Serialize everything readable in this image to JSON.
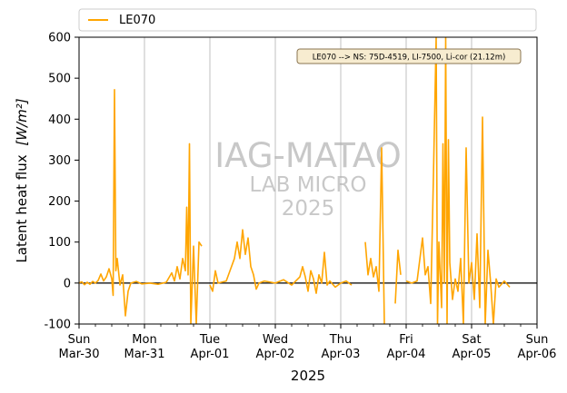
{
  "chart_data": {
    "type": "line",
    "xlabel": "2025",
    "ylabel_main": "Latent heat flux",
    "ylabel_unit": "[W/m²]",
    "ylim": [
      -100,
      600
    ],
    "yticks": [
      -100,
      0,
      100,
      200,
      300,
      400,
      500,
      600
    ],
    "xlim": [
      "2025-03-30",
      "2025-04-06"
    ],
    "xticks": [
      {
        "date": "2025-03-30",
        "day": "Sun",
        "date_label": "Mar-30"
      },
      {
        "date": "2025-03-31",
        "day": "Mon",
        "date_label": "Mar-31"
      },
      {
        "date": "2025-04-01",
        "day": "Tue",
        "date_label": "Apr-01"
      },
      {
        "date": "2025-04-02",
        "day": "Wed",
        "date_label": "Apr-02"
      },
      {
        "date": "2025-04-03",
        "day": "Thu",
        "date_label": "Apr-03"
      },
      {
        "date": "2025-04-04",
        "day": "Fri",
        "date_label": "Apr-04"
      },
      {
        "date": "2025-04-05",
        "day": "Sat",
        "date_label": "Apr-05"
      },
      {
        "date": "2025-04-06",
        "day": "Sun",
        "date_label": "Apr-06"
      }
    ],
    "grid": "vertical",
    "zero_line": true,
    "legend_placement": "top, above plot",
    "annotation": "LE070 --> NS: 75D-4519, LI-7500, Li-cor (21.12m)",
    "watermark": [
      "IAG-MATAO",
      "LAB MICRO",
      "2025"
    ],
    "series": [
      {
        "name": "LE070",
        "color": "#ffa500",
        "points": [
          [
            "2025-03-30 00:00",
            0
          ],
          [
            "2025-03-30 01:00",
            3
          ],
          [
            "2025-03-30 02:00",
            -4
          ],
          [
            "2025-03-30 03:00",
            2
          ],
          [
            "2025-03-30 04:00",
            -3
          ],
          [
            "2025-03-30 05:00",
            4
          ],
          [
            "2025-03-30 06:00",
            0
          ],
          [
            "2025-03-30 07:00",
            6
          ],
          [
            "2025-03-30 08:00",
            22
          ],
          [
            "2025-03-30 09:00",
            5
          ],
          [
            "2025-03-30 10:00",
            15
          ],
          [
            "2025-03-30 11:00",
            35
          ],
          [
            "2025-03-30 12:00",
            10
          ],
          [
            "2025-03-30 12:30",
            -30
          ],
          [
            "2025-03-30 13:00",
            472
          ],
          [
            "2025-03-30 13:30",
            30
          ],
          [
            "2025-03-30 14:00",
            60
          ],
          [
            "2025-03-30 15:00",
            -5
          ],
          [
            "2025-03-30 16:00",
            20
          ],
          [
            "2025-03-30 17:00",
            -80
          ],
          [
            "2025-03-30 18:00",
            -20
          ],
          [
            "2025-03-30 19:00",
            0
          ],
          [
            "2025-03-30 21:00",
            4
          ],
          [
            "2025-03-30 23:00",
            -2
          ],
          [
            "2025-03-31 02:00",
            0
          ],
          [
            "2025-03-31 05:00",
            -3
          ],
          [
            "2025-03-31 08:00",
            2
          ],
          [
            "2025-03-31 10:00",
            25
          ],
          [
            "2025-03-31 11:00",
            5
          ],
          [
            "2025-03-31 12:00",
            40
          ],
          [
            "2025-03-31 13:00",
            10
          ],
          [
            "2025-03-31 14:00",
            60
          ],
          [
            "2025-03-31 15:00",
            30
          ],
          [
            "2025-03-31 15:30",
            185
          ],
          [
            "2025-03-31 16:00",
            20
          ],
          [
            "2025-03-31 16:30",
            340
          ],
          [
            "2025-03-31 17:00",
            -100
          ],
          [
            "2025-03-31 18:00",
            90
          ],
          [
            "2025-03-31 19:00",
            -100
          ],
          [
            "2025-03-31 20:00",
            100
          ],
          [
            "2025-03-31 21:00",
            90
          ],
          null,
          [
            "2025-04-01 00:00",
            -5
          ],
          [
            "2025-04-01 01:00",
            -20
          ],
          [
            "2025-04-01 02:00",
            30
          ],
          [
            "2025-04-01 03:00",
            0
          ],
          [
            "2025-04-01 06:00",
            5
          ],
          [
            "2025-04-01 09:00",
            60
          ],
          [
            "2025-04-01 10:00",
            100
          ],
          [
            "2025-04-01 11:00",
            60
          ],
          [
            "2025-04-01 12:00",
            130
          ],
          [
            "2025-04-01 13:00",
            70
          ],
          [
            "2025-04-01 14:00",
            110
          ],
          [
            "2025-04-01 15:00",
            40
          ],
          [
            "2025-04-01 16:00",
            20
          ],
          [
            "2025-04-01 17:00",
            -15
          ],
          [
            "2025-04-01 18:00",
            0
          ],
          [
            "2025-04-01 20:00",
            5
          ],
          [
            "2025-04-02 00:00",
            0
          ],
          [
            "2025-04-02 03:00",
            8
          ],
          [
            "2025-04-02 06:00",
            -5
          ],
          [
            "2025-04-02 09:00",
            15
          ],
          [
            "2025-04-02 10:00",
            40
          ],
          [
            "2025-04-02 11:00",
            15
          ],
          [
            "2025-04-02 12:00",
            -20
          ],
          [
            "2025-04-02 13:00",
            30
          ],
          [
            "2025-04-02 14:00",
            10
          ],
          [
            "2025-04-02 15:00",
            -25
          ],
          [
            "2025-04-02 16:00",
            20
          ],
          [
            "2025-04-02 17:00",
            0
          ],
          [
            "2025-04-02 18:00",
            75
          ],
          [
            "2025-04-02 19:00",
            -5
          ],
          [
            "2025-04-02 20:00",
            5
          ],
          [
            "2025-04-02 22:00",
            -10
          ],
          [
            "2025-04-03 00:00",
            0
          ],
          [
            "2025-04-03 02:00",
            5
          ],
          [
            "2025-04-03 04:00",
            -5
          ],
          null,
          [
            "2025-04-03 09:00",
            100
          ],
          [
            "2025-04-03 10:00",
            20
          ],
          [
            "2025-04-03 11:00",
            60
          ],
          [
            "2025-04-03 12:00",
            15
          ],
          [
            "2025-04-03 13:00",
            40
          ],
          [
            "2025-04-03 14:00",
            -20
          ],
          [
            "2025-04-03 15:00",
            330
          ],
          [
            "2025-04-03 16:00",
            -100
          ],
          null,
          [
            "2025-04-03 20:00",
            -50
          ],
          [
            "2025-04-03 21:00",
            80
          ],
          [
            "2025-04-03 22:00",
            20
          ],
          null,
          [
            "2025-04-04 00:00",
            5
          ],
          [
            "2025-04-04 02:00",
            0
          ],
          [
            "2025-04-04 04:00",
            5
          ],
          [
            "2025-04-04 06:00",
            110
          ],
          [
            "2025-04-04 07:00",
            20
          ],
          [
            "2025-04-04 08:00",
            40
          ],
          [
            "2025-04-04 09:00",
            -50
          ],
          [
            "2025-04-04 10:00",
            260
          ],
          [
            "2025-04-04 11:00",
            600
          ],
          [
            "2025-04-04 11:30",
            -100
          ],
          [
            "2025-04-04 12:00",
            100
          ],
          [
            "2025-04-04 13:00",
            -60
          ],
          [
            "2025-04-04 13:30",
            340
          ],
          [
            "2025-04-04 14:00",
            0
          ],
          [
            "2025-04-04 14:30",
            600
          ],
          [
            "2025-04-04 15:00",
            -100
          ],
          [
            "2025-04-04 15:30",
            350
          ],
          [
            "2025-04-04 16:00",
            50
          ],
          [
            "2025-04-04 17:00",
            -40
          ],
          [
            "2025-04-04 18:00",
            10
          ],
          [
            "2025-04-04 19:00",
            -20
          ],
          [
            "2025-04-04 20:00",
            60
          ],
          [
            "2025-04-04 21:00",
            -100
          ],
          [
            "2025-04-04 22:00",
            330
          ],
          [
            "2025-04-04 23:00",
            0
          ],
          [
            "2025-04-05 00:00",
            50
          ],
          [
            "2025-04-05 01:00",
            -40
          ],
          [
            "2025-04-05 02:00",
            120
          ],
          [
            "2025-04-05 03:00",
            -60
          ],
          [
            "2025-04-05 04:00",
            405
          ],
          [
            "2025-04-05 05:00",
            -100
          ],
          [
            "2025-04-05 06:00",
            80
          ],
          [
            "2025-04-05 07:00",
            0
          ],
          [
            "2025-04-05 08:00",
            -100
          ],
          [
            "2025-04-05 09:00",
            10
          ],
          [
            "2025-04-05 10:00",
            -10
          ],
          [
            "2025-04-05 12:00",
            5
          ],
          [
            "2025-04-05 14:00",
            -10
          ]
        ]
      }
    ]
  }
}
